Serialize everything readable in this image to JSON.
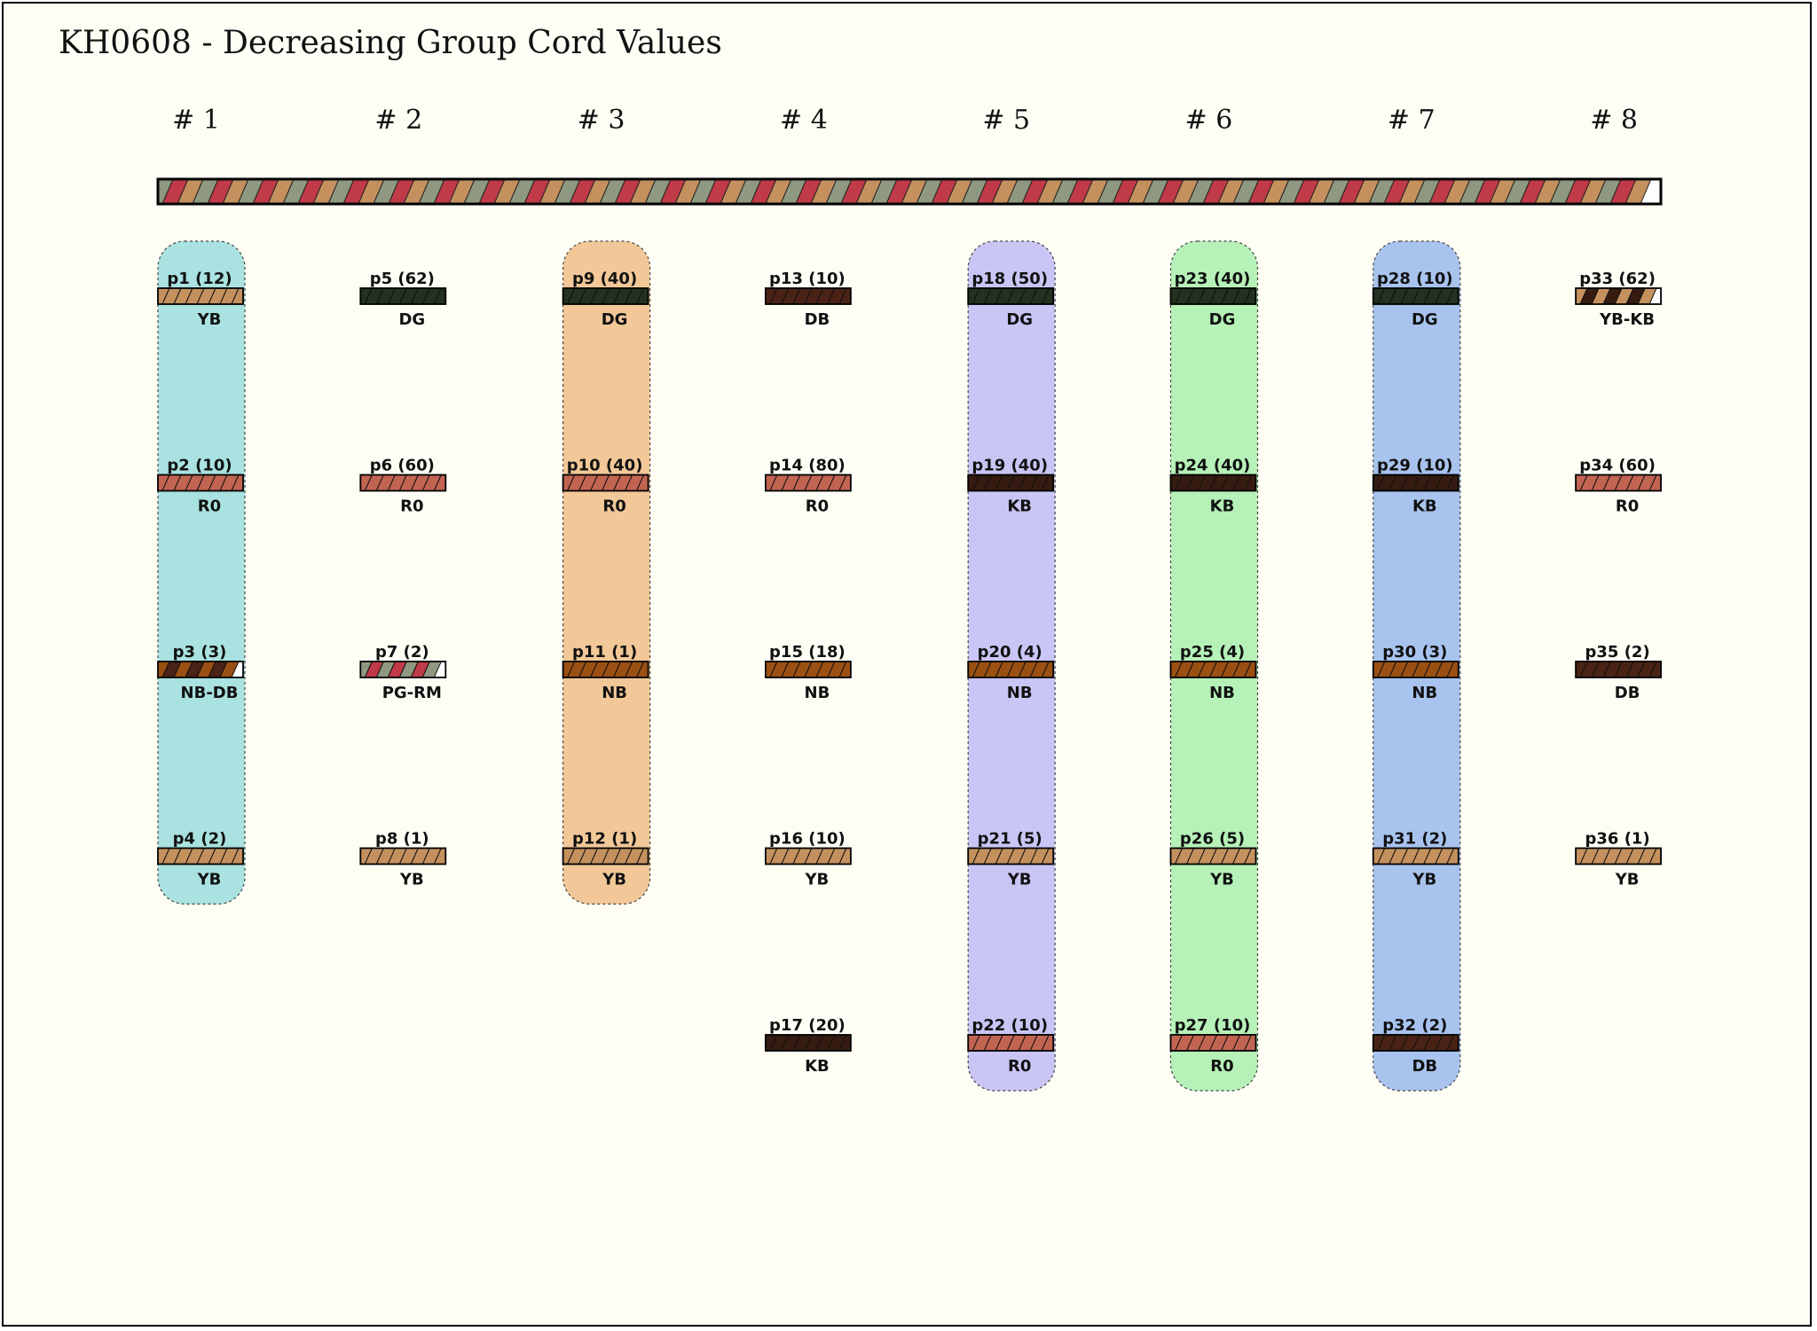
{
  "title": "KH0608 - Decreasing Group Cord Values",
  "colors": {
    "background": "#fffef5",
    "YB": "#c4915e",
    "RO": "#c26452",
    "DG": "#233220",
    "DB": "#4a2316",
    "NB": "#9a4f13",
    "KB": "#361b10",
    "PG": "#8f9880",
    "RM": "#c03a48",
    "white": "#ffffff"
  },
  "primary_cord": {
    "pattern": [
      "PG",
      "RM",
      "YB"
    ]
  },
  "groups": [
    {
      "label": "# 1",
      "highlight": "#a9e2e0",
      "cords": [
        {
          "label": "p1 (12)",
          "color": "YB",
          "stripes": [
            "YB"
          ]
        },
        {
          "label": "p2 (10)",
          "color": "R0",
          "stripes": [
            "RO"
          ]
        },
        {
          "label": "p3 (3)",
          "color": "NB-DB",
          "stripes": [
            "NB",
            "DB"
          ]
        },
        {
          "label": "p4 (2)",
          "color": "YB",
          "stripes": [
            "YB"
          ]
        }
      ]
    },
    {
      "label": "# 2",
      "highlight": null,
      "cords": [
        {
          "label": "p5 (62)",
          "color": "DG",
          "stripes": [
            "DG"
          ]
        },
        {
          "label": "p6 (60)",
          "color": "R0",
          "stripes": [
            "RO"
          ]
        },
        {
          "label": "p7 (2)",
          "color": "PG-RM",
          "stripes": [
            "PG",
            "RM"
          ]
        },
        {
          "label": "p8 (1)",
          "color": "YB",
          "stripes": [
            "YB"
          ]
        }
      ]
    },
    {
      "label": "# 3",
      "highlight": "#f2c898",
      "cords": [
        {
          "label": "p9 (40)",
          "color": "DG",
          "stripes": [
            "DG"
          ]
        },
        {
          "label": "p10 (40)",
          "color": "R0",
          "stripes": [
            "RO"
          ]
        },
        {
          "label": "p11 (1)",
          "color": "NB",
          "stripes": [
            "NB"
          ]
        },
        {
          "label": "p12 (1)",
          "color": "YB",
          "stripes": [
            "YB"
          ]
        }
      ]
    },
    {
      "label": "# 4",
      "highlight": null,
      "cords": [
        {
          "label": "p13 (10)",
          "color": "DB",
          "stripes": [
            "DB"
          ]
        },
        {
          "label": "p14 (80)",
          "color": "R0",
          "stripes": [
            "RO"
          ]
        },
        {
          "label": "p15 (18)",
          "color": "NB",
          "stripes": [
            "NB"
          ]
        },
        {
          "label": "p16 (10)",
          "color": "YB",
          "stripes": [
            "YB"
          ]
        },
        {
          "label": "p17 (20)",
          "color": "KB",
          "stripes": [
            "KB"
          ]
        }
      ]
    },
    {
      "label": "# 5",
      "highlight": "#c9c6f6",
      "cords": [
        {
          "label": "p18 (50)",
          "color": "DG",
          "stripes": [
            "DG"
          ]
        },
        {
          "label": "p19 (40)",
          "color": "KB",
          "stripes": [
            "KB"
          ]
        },
        {
          "label": "p20 (4)",
          "color": "NB",
          "stripes": [
            "NB"
          ]
        },
        {
          "label": "p21 (5)",
          "color": "YB",
          "stripes": [
            "YB"
          ]
        },
        {
          "label": "p22 (10)",
          "color": "R0",
          "stripes": [
            "RO"
          ]
        }
      ]
    },
    {
      "label": "# 6",
      "highlight": "#b6f1b8",
      "cords": [
        {
          "label": "p23 (40)",
          "color": "DG",
          "stripes": [
            "DG"
          ]
        },
        {
          "label": "p24 (40)",
          "color": "KB",
          "stripes": [
            "KB"
          ]
        },
        {
          "label": "p25 (4)",
          "color": "NB",
          "stripes": [
            "NB"
          ]
        },
        {
          "label": "p26 (5)",
          "color": "YB",
          "stripes": [
            "YB"
          ]
        },
        {
          "label": "p27 (10)",
          "color": "R0",
          "stripes": [
            "RO"
          ]
        }
      ]
    },
    {
      "label": "# 7",
      "highlight": "#a8c3ee",
      "cords": [
        {
          "label": "p28 (10)",
          "color": "DG",
          "stripes": [
            "DG"
          ]
        },
        {
          "label": "p29 (10)",
          "color": "KB",
          "stripes": [
            "KB"
          ]
        },
        {
          "label": "p30 (3)",
          "color": "NB",
          "stripes": [
            "NB"
          ]
        },
        {
          "label": "p31 (2)",
          "color": "YB",
          "stripes": [
            "YB"
          ]
        },
        {
          "label": "p32 (2)",
          "color": "DB",
          "stripes": [
            "DB"
          ]
        }
      ]
    },
    {
      "label": "# 8",
      "highlight": null,
      "cords": [
        {
          "label": "p33 (62)",
          "color": "YB-KB",
          "stripes": [
            "YB",
            "KB"
          ]
        },
        {
          "label": "p34 (60)",
          "color": "R0",
          "stripes": [
            "RO"
          ]
        },
        {
          "label": "p35 (2)",
          "color": "DB",
          "stripes": [
            "DB"
          ]
        },
        {
          "label": "p36 (1)",
          "color": "YB",
          "stripes": [
            "YB"
          ]
        }
      ]
    }
  ]
}
